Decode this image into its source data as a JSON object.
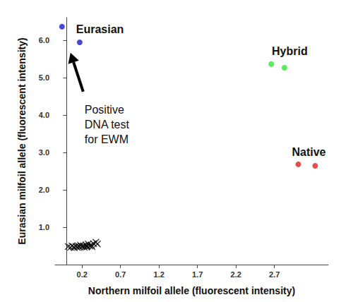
{
  "chart_data": {
    "type": "scatter",
    "x_label": "Northern milfoil allele (fluorescent intensity)",
    "y_label": "Eurasian milfoil allele (fluorescent intensity)",
    "xlim": [
      -0.15,
      3.4
    ],
    "xticks": [
      0.2,
      0.7,
      1.2,
      1.7,
      2.2,
      2.7
    ],
    "ylim": [
      0,
      6.6
    ],
    "yticks": [
      {
        "value": 1,
        "label": "1.0"
      },
      {
        "value": 2,
        "label": "2.0"
      },
      {
        "value": 3,
        "label": "3.0"
      },
      {
        "value": 4,
        "label": "4.0"
      },
      {
        "value": 5,
        "label": "5.0"
      },
      {
        "value": 6,
        "label": "6.0"
      }
    ],
    "grid": false,
    "series": [
      {
        "name": "Eurasian",
        "color": "#1a1acd",
        "marker": "circle",
        "values": [
          [
            -0.06,
            6.36
          ],
          [
            0.17,
            5.94
          ]
        ]
      },
      {
        "name": "Hybrid",
        "color": "#2ee82e",
        "marker": "circle",
        "values": [
          [
            2.66,
            5.36
          ],
          [
            2.83,
            5.26
          ]
        ]
      },
      {
        "name": "Native",
        "color": "#e0201a",
        "marker": "circle",
        "values": [
          [
            3.01,
            2.68
          ],
          [
            3.23,
            2.64
          ]
        ]
      },
      {
        "color": "#000000",
        "marker": "x",
        "values": [
          [
            0.02,
            0.48
          ],
          [
            0.05,
            0.46
          ],
          [
            0.07,
            0.5
          ],
          [
            0.09,
            0.47
          ],
          [
            0.1,
            0.45
          ],
          [
            0.12,
            0.49
          ],
          [
            0.14,
            0.46
          ],
          [
            0.15,
            0.5
          ],
          [
            0.17,
            0.47
          ],
          [
            0.18,
            0.52
          ],
          [
            0.2,
            0.48
          ],
          [
            0.22,
            0.5
          ],
          [
            0.23,
            0.46
          ],
          [
            0.25,
            0.53
          ],
          [
            0.26,
            0.47
          ],
          [
            0.27,
            0.49
          ],
          [
            0.28,
            0.55
          ],
          [
            0.3,
            0.5
          ],
          [
            0.32,
            0.52
          ],
          [
            0.33,
            0.48
          ],
          [
            0.35,
            0.56
          ],
          [
            0.38,
            0.6
          ],
          [
            0.4,
            0.55
          ]
        ]
      }
    ],
    "annotations": [
      {
        "text": "Positive\nDNA test\nfor EWM",
        "x": 0.05,
        "y": 5.66,
        "arrow": true
      }
    ]
  }
}
